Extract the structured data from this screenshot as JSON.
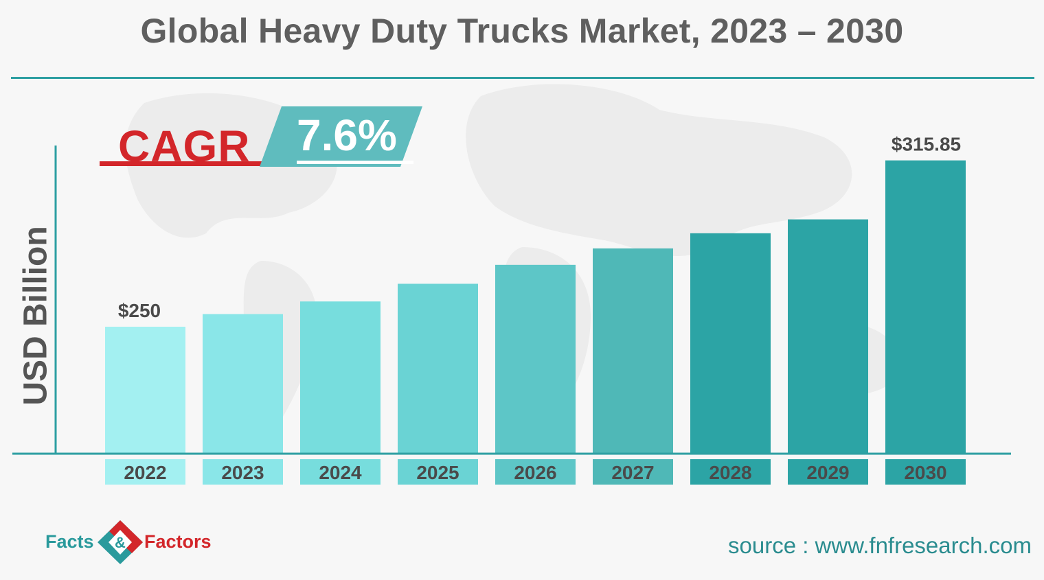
{
  "header": {
    "title": "Global Heavy Duty Trucks Market, 2023 – 2030"
  },
  "cagr": {
    "label": "CAGR",
    "value": "7.6%"
  },
  "chart_data": {
    "type": "bar",
    "title": "Global Heavy Duty Trucks Market, 2023 – 2030",
    "ylabel": "USD Billion",
    "xlabel": "",
    "categories": [
      "2022",
      "2023",
      "2024",
      "2025",
      "2026",
      "2027",
      "2028",
      "2029",
      "2030"
    ],
    "values": [
      250,
      255,
      260,
      267,
      274.5,
      281,
      287,
      292.5,
      315.85
    ],
    "data_labels": {
      "0": "$250",
      "8": "$315.85"
    },
    "ylim": [
      200,
      325
    ],
    "grid": false,
    "legend": "none",
    "colors": [
      "#a3f0f1",
      "#8ae6e8",
      "#77dddd",
      "#6ad3d4",
      "#5dc6c7",
      "#4fb8b7",
      "#2ca4a5",
      "#2ca4a5",
      "#2ca4a5"
    ]
  },
  "footer": {
    "logo_left": "Facts",
    "logo_right": "Factors",
    "logo_mark_letter": "&",
    "source": "source : www.fnfresearch.com"
  },
  "colors": {
    "accent": "#2d9fa2",
    "cagr_red": "#d3262a",
    "title_gray": "#5f5f5f"
  }
}
